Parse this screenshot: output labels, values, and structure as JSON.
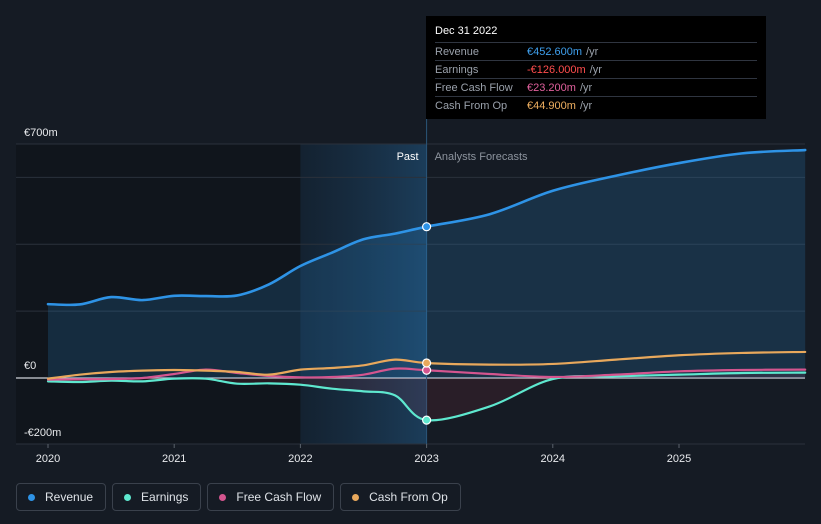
{
  "chart_data": {
    "type": "line",
    "title": "",
    "xlabel": "",
    "ylabel": "",
    "y_unit": "€m",
    "ylim": [
      -200,
      700
    ],
    "y_tick_labels": [
      {
        "value": 700,
        "label": "€700m"
      },
      {
        "value": 0,
        "label": "€0"
      },
      {
        "value": -200,
        "label": "-€200m"
      }
    ],
    "x_ticks": [
      {
        "value": 2020,
        "label": "2020"
      },
      {
        "value": 2021,
        "label": "2021"
      },
      {
        "value": 2022,
        "label": "2022"
      },
      {
        "value": 2023,
        "label": "2023"
      },
      {
        "value": 2024,
        "label": "2024"
      },
      {
        "value": 2025,
        "label": "2025"
      }
    ],
    "xlim": [
      2019.75,
      2026.0
    ],
    "divider_x": 2023.0,
    "highlight_start_x": 2022.0,
    "region_labels": {
      "past": "Past",
      "forecast": "Analysts Forecasts"
    },
    "series": [
      {
        "name": "Revenue",
        "color": "#2e93e6",
        "points": [
          [
            2020.0,
            221
          ],
          [
            2020.25,
            220
          ],
          [
            2020.5,
            242
          ],
          [
            2020.75,
            233
          ],
          [
            2021.0,
            246
          ],
          [
            2021.25,
            245
          ],
          [
            2021.5,
            247
          ],
          [
            2021.75,
            280
          ],
          [
            2022.0,
            335
          ],
          [
            2022.25,
            375
          ],
          [
            2022.5,
            415
          ],
          [
            2022.75,
            432
          ],
          [
            2023.0,
            452.6
          ],
          [
            2023.5,
            490
          ],
          [
            2024.0,
            560
          ],
          [
            2024.5,
            605
          ],
          [
            2025.0,
            643
          ],
          [
            2025.5,
            672
          ],
          [
            2026.0,
            682
          ]
        ]
      },
      {
        "name": "Earnings",
        "color": "#5ee8cf",
        "points": [
          [
            2020.0,
            -10
          ],
          [
            2020.25,
            -12
          ],
          [
            2020.5,
            -8
          ],
          [
            2020.75,
            -10
          ],
          [
            2021.0,
            -2
          ],
          [
            2021.25,
            -2
          ],
          [
            2021.5,
            -17
          ],
          [
            2021.75,
            -16
          ],
          [
            2022.0,
            -20
          ],
          [
            2022.25,
            -32
          ],
          [
            2022.5,
            -40
          ],
          [
            2022.75,
            -52
          ],
          [
            2023.0,
            -126
          ],
          [
            2023.5,
            -85
          ],
          [
            2024.0,
            -3
          ],
          [
            2024.5,
            5
          ],
          [
            2025.0,
            10
          ],
          [
            2025.5,
            15
          ],
          [
            2026.0,
            16
          ]
        ]
      },
      {
        "name": "Free Cash Flow",
        "color": "#d4558f",
        "points": [
          [
            2020.0,
            -5
          ],
          [
            2020.25,
            -4
          ],
          [
            2020.5,
            -3
          ],
          [
            2020.75,
            0
          ],
          [
            2021.0,
            12
          ],
          [
            2021.25,
            25
          ],
          [
            2021.5,
            15
          ],
          [
            2021.75,
            6
          ],
          [
            2022.0,
            2
          ],
          [
            2022.25,
            3
          ],
          [
            2022.5,
            10
          ],
          [
            2022.75,
            28
          ],
          [
            2023.0,
            23.2
          ],
          [
            2023.5,
            12
          ],
          [
            2024.0,
            3
          ],
          [
            2024.5,
            10
          ],
          [
            2025.0,
            20
          ],
          [
            2025.5,
            24
          ],
          [
            2026.0,
            25
          ]
        ]
      },
      {
        "name": "Cash From Op",
        "color": "#e8a85c",
        "points": [
          [
            2020.0,
            -2
          ],
          [
            2020.25,
            10
          ],
          [
            2020.5,
            18
          ],
          [
            2020.75,
            22
          ],
          [
            2021.0,
            24
          ],
          [
            2021.25,
            22
          ],
          [
            2021.5,
            18
          ],
          [
            2021.75,
            10
          ],
          [
            2022.0,
            25
          ],
          [
            2022.25,
            30
          ],
          [
            2022.5,
            38
          ],
          [
            2022.75,
            55
          ],
          [
            2023.0,
            44.9
          ],
          [
            2023.5,
            40
          ],
          [
            2024.0,
            42
          ],
          [
            2024.5,
            55
          ],
          [
            2025.0,
            68
          ],
          [
            2025.5,
            75
          ],
          [
            2026.0,
            78
          ]
        ]
      }
    ]
  },
  "tooltip": {
    "date": "Dec 31 2022",
    "rows": [
      {
        "label": "Revenue",
        "value": "€452.600m",
        "unit": "/yr",
        "color": "#3fa0ee"
      },
      {
        "label": "Earnings",
        "value": "-€126.000m",
        "unit": "/yr",
        "color": "#ff4d4d"
      },
      {
        "label": "Free Cash Flow",
        "value": "€23.200m",
        "unit": "/yr",
        "color": "#e0609c"
      },
      {
        "label": "Cash From Op",
        "value": "€44.900m",
        "unit": "/yr",
        "color": "#f0b060"
      }
    ]
  },
  "legend": [
    {
      "label": "Revenue",
      "color": "#2e93e6"
    },
    {
      "label": "Earnings",
      "color": "#5ee8cf"
    },
    {
      "label": "Free Cash Flow",
      "color": "#d4558f"
    },
    {
      "label": "Cash From Op",
      "color": "#e8a85c"
    }
  ]
}
